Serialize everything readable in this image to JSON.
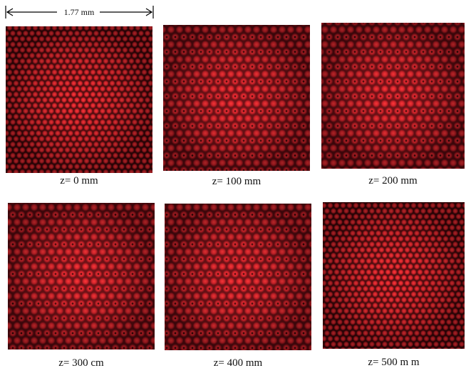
{
  "scale_bar": {
    "label": "1.77 mm"
  },
  "panels": [
    {
      "label": "z= 0 mm"
    },
    {
      "label": "z= 100 mm"
    },
    {
      "label": "z= 200 mm"
    },
    {
      "label": "z= 300 cm"
    },
    {
      "label": "z= 400 mm"
    },
    {
      "label": "z= 500  m m"
    }
  ]
}
